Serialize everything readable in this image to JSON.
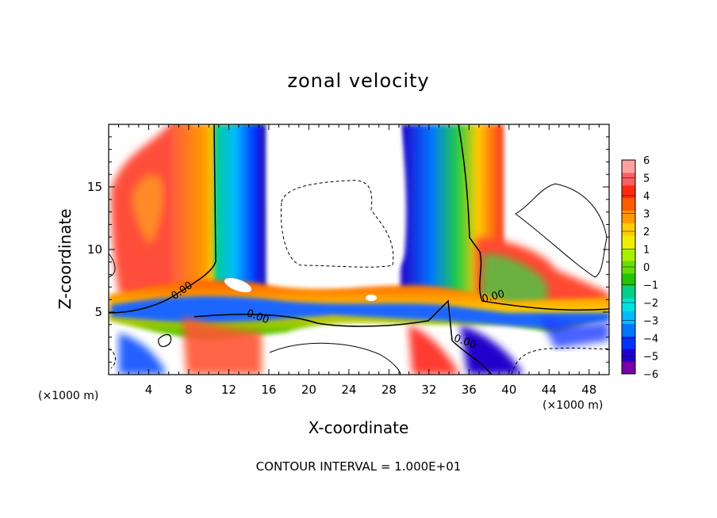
{
  "chart_data": {
    "type": "heatmap",
    "title": "zonal velocity",
    "xlabel": "X-coordinate",
    "ylabel": "Z-coordinate",
    "x_unit_left": "(×1000 m)",
    "x_unit_right": "(×1000 m)",
    "xlim": [
      0,
      50
    ],
    "ylim": [
      0,
      20
    ],
    "xticks": [
      4,
      8,
      12,
      16,
      20,
      24,
      28,
      32,
      36,
      40,
      44,
      48
    ],
    "yticks": [
      5,
      10,
      15
    ],
    "colorbar": {
      "min": -6,
      "max": 6,
      "ticks": [
        6,
        5,
        4,
        3,
        2,
        1,
        0,
        -1,
        -2,
        -3,
        -4,
        -5,
        -6
      ],
      "colors": [
        "#7a00a8",
        "#2200cc",
        "#0033ff",
        "#0077ff",
        "#00bbff",
        "#00e0e0",
        "#00d08a",
        "#22c400",
        "#66dd00",
        "#aaee00",
        "#eeee00",
        "#ffcc00",
        "#ff9900",
        "#ff5a00",
        "#ff2a10",
        "#f86060",
        "#ffa0a0"
      ]
    },
    "contour_labels": [
      "0.00",
      "0.00",
      "0.00",
      "0.00"
    ],
    "footnote": "CONTOUR INTERVAL = 1.000E+01"
  }
}
